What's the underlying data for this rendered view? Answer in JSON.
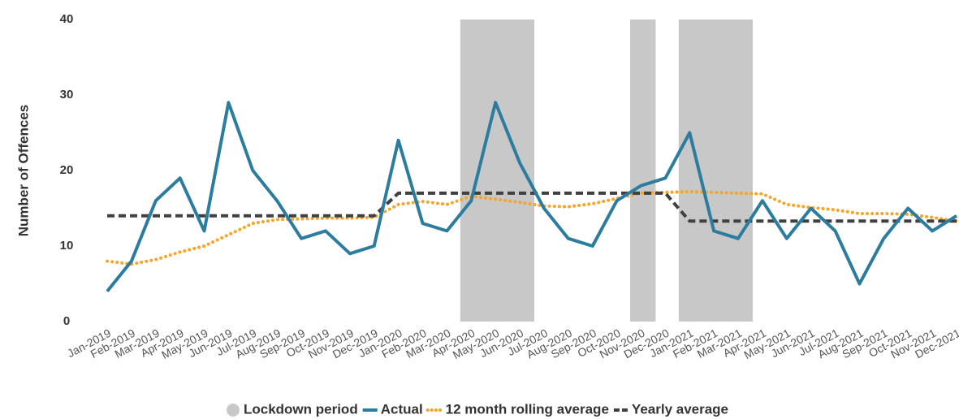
{
  "chart_data": {
    "type": "line",
    "y_label": "Number of Offences",
    "categories": [
      "Jan-2019",
      "Feb-2019",
      "Mar-2019",
      "Apr-2019",
      "May-2019",
      "Jun-2019",
      "Jul-2019",
      "Aug-2019",
      "Sep-2019",
      "Oct-2019",
      "Nov-2019",
      "Dec-2019",
      "Jan-2020",
      "Feb-2020",
      "Mar-2020",
      "Apr-2020",
      "May-2020",
      "Jun-2020",
      "Jul-2020",
      "Aug-2020",
      "Sep-2020",
      "Oct-2020",
      "Nov-2020",
      "Dec-2020",
      "Jan-2021",
      "Feb-2021",
      "Mar-2021",
      "Apr-2021",
      "May-2021",
      "Jun-2021",
      "Jul-2021",
      "Aug-2021",
      "Sep-2021",
      "Oct-2021",
      "Nov-2021",
      "Dec-2021"
    ],
    "bands": {
      "name": "Lockdown period",
      "color": "#c8c8c8",
      "ranges": [
        {
          "start": "Apr-2020",
          "end": "Jun-2020"
        },
        {
          "start": "Nov-2020",
          "end": "Nov-2020"
        },
        {
          "start": "Jan-2021",
          "end": "Mar-2021"
        }
      ]
    },
    "series": [
      {
        "name": "Actual",
        "color": "#2b7c9f",
        "style": "solid",
        "values": [
          4,
          8,
          16,
          19,
          12,
          29,
          20,
          16,
          11,
          12,
          9,
          10,
          24,
          13,
          12,
          16,
          29,
          21,
          15,
          11,
          10,
          16,
          18,
          19,
          25,
          12,
          11,
          16,
          11,
          15,
          12,
          5,
          11,
          15,
          12,
          14
        ]
      },
      {
        "name": "12 month rolling average",
        "color": "#f5a52a",
        "style": "dotted",
        "values": [
          8,
          7.6,
          8.2,
          9.2,
          10,
          11.5,
          13,
          13.5,
          13.6,
          13.7,
          13.7,
          13.8,
          15.5,
          15.9,
          15.5,
          16.6,
          16.2,
          15.8,
          15.3,
          15.2,
          15.6,
          16.3,
          17,
          17.1,
          17.2,
          17.1,
          17,
          16.9,
          15.5,
          15.1,
          14.8,
          14.3,
          14.3,
          14.2,
          13.8,
          13.3
        ]
      },
      {
        "name": "Yearly average",
        "color": "#404040",
        "style": "dashed",
        "values": [
          14,
          14,
          14,
          14,
          14,
          14,
          14,
          14,
          14,
          14,
          14,
          14,
          17,
          17,
          17,
          17,
          17,
          17,
          17,
          17,
          17,
          17,
          17,
          17,
          13.3,
          13.3,
          13.3,
          13.3,
          13.3,
          13.3,
          13.3,
          13.3,
          13.3,
          13.3,
          13.3,
          13.3
        ]
      }
    ],
    "ylim": [
      0,
      40
    ],
    "yticks": [
      0,
      10,
      20,
      30,
      40
    ],
    "grid": false,
    "legend": "bottom"
  }
}
